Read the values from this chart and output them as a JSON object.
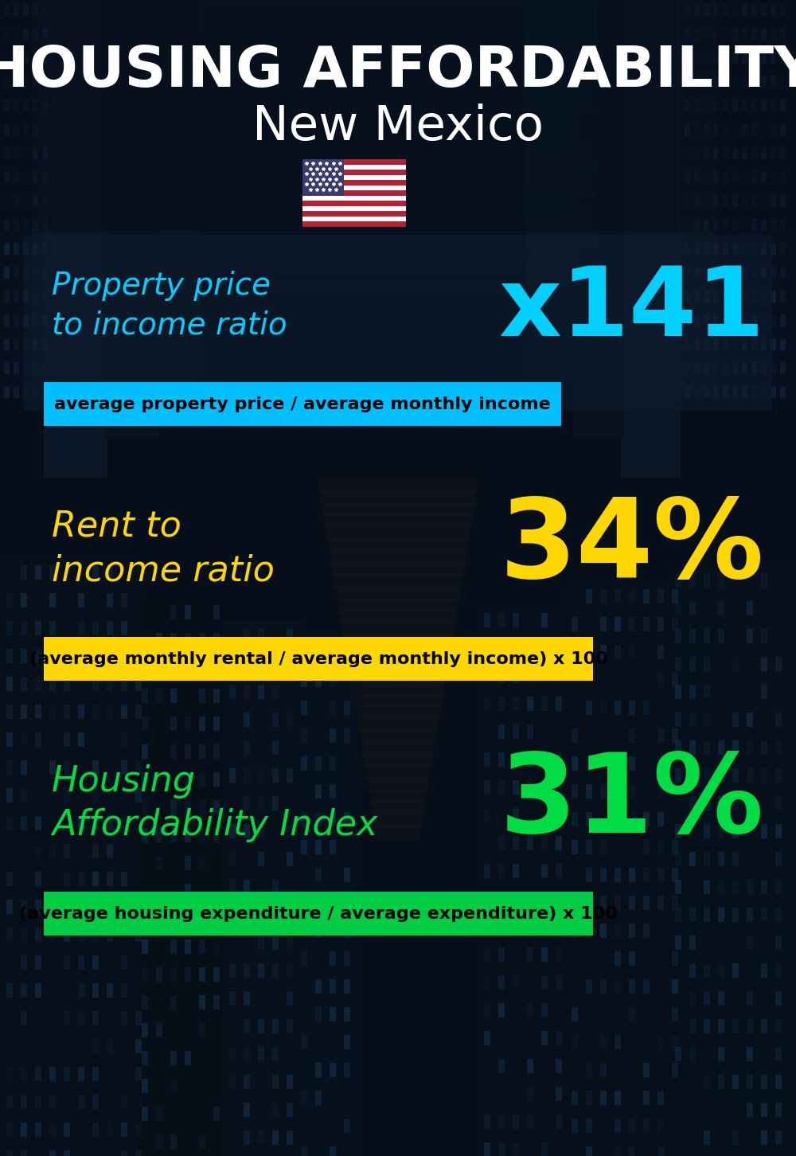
{
  "title_line1": "HOUSING AFFORDABILITY",
  "title_line2": "New Mexico",
  "section1_label_line1": "Property price",
  "section1_label_line2": "to income ratio",
  "section1_value": "x141",
  "section1_label_color": "#00cfff",
  "section1_value_color": "#00cfff",
  "section1_formula": "average property price / average monthly income",
  "section1_formula_bg": "#00bfff",
  "section2_label_line1": "Rent to",
  "section2_label_line2": "income ratio",
  "section2_value": "34%",
  "section2_label_color": "#ffd700",
  "section2_value_color": "#ffd700",
  "section2_formula": "(average monthly rental / average monthly income) x 100",
  "section2_formula_bg": "#ffd700",
  "section3_label_line1": "Housing",
  "section3_label_line2": "Affordability Index",
  "section3_value": "31%",
  "section3_label_color": "#00dd44",
  "section3_value_color": "#00dd44",
  "section3_formula": "(average housing expenditure / average expenditure) x 100",
  "section3_formula_bg": "#00cc44",
  "bg_color": "#060e1a",
  "title_color": "#ffffff",
  "formula_text_color": "#000000",
  "panel_color": "#0d1c30",
  "panel_alpha": 0.6
}
